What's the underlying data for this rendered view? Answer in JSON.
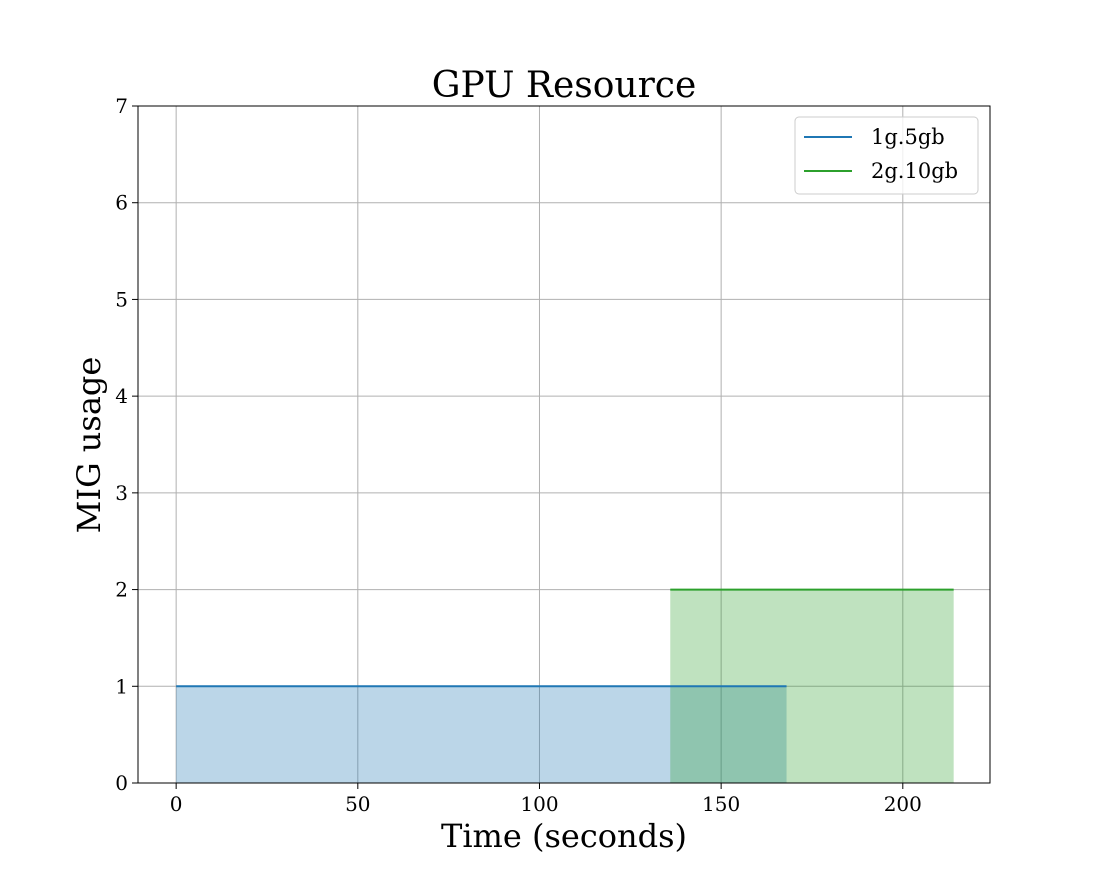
{
  "chart_data": {
    "type": "area",
    "title": "GPU Resource",
    "xlabel": "Time (seconds)",
    "ylabel": "MIG usage",
    "xlim": [
      -10.5,
      224
    ],
    "ylim": [
      0,
      7
    ],
    "xticks": [
      0,
      50,
      100,
      150,
      200
    ],
    "yticks": [
      0,
      1,
      2,
      3,
      4,
      5,
      6,
      7
    ],
    "grid": true,
    "legend_position": "upper right",
    "series": [
      {
        "name": "1g.5gb",
        "color": "#1f77b4",
        "x": [
          0,
          168
        ],
        "y": [
          1,
          1
        ]
      },
      {
        "name": "2g.10gb",
        "color": "#2ca02c",
        "x": [
          136,
          214
        ],
        "y": [
          2,
          2
        ]
      }
    ]
  }
}
